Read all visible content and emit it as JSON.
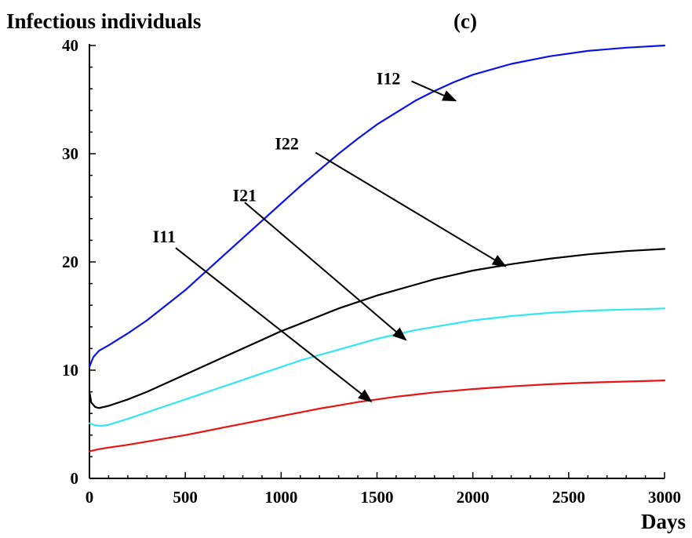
{
  "chart_data": {
    "type": "line",
    "title": "Infectious individuals",
    "panel_label": "(c)",
    "xlabel": "Days",
    "ylabel": "",
    "xlim": [
      0,
      3000
    ],
    "ylim": [
      0,
      40
    ],
    "x_ticks": [
      0,
      500,
      1000,
      1500,
      2000,
      2500,
      3000
    ],
    "y_ticks": [
      0,
      10,
      20,
      30,
      40
    ],
    "grid": false,
    "series": [
      {
        "name": "I12",
        "color": "#0a14e6",
        "points": [
          [
            0,
            10.3
          ],
          [
            20,
            11.2
          ],
          [
            50,
            11.8
          ],
          [
            100,
            12.3
          ],
          [
            200,
            13.4
          ],
          [
            300,
            14.6
          ],
          [
            400,
            16.0
          ],
          [
            500,
            17.4
          ],
          [
            600,
            19.0
          ],
          [
            700,
            20.6
          ],
          [
            800,
            22.2
          ],
          [
            900,
            23.8
          ],
          [
            1000,
            25.4
          ],
          [
            1100,
            27.0
          ],
          [
            1200,
            28.5
          ],
          [
            1300,
            30.0
          ],
          [
            1400,
            31.4
          ],
          [
            1500,
            32.7
          ],
          [
            1600,
            33.8
          ],
          [
            1700,
            34.9
          ],
          [
            1800,
            35.8
          ],
          [
            1900,
            36.6
          ],
          [
            2000,
            37.3
          ],
          [
            2200,
            38.3
          ],
          [
            2400,
            39.0
          ],
          [
            2600,
            39.5
          ],
          [
            2800,
            39.8
          ],
          [
            3000,
            40.0
          ]
        ]
      },
      {
        "name": "I22",
        "color": "#000000",
        "points": [
          [
            0,
            8.0
          ],
          [
            10,
            7.0
          ],
          [
            30,
            6.6
          ],
          [
            50,
            6.5
          ],
          [
            100,
            6.7
          ],
          [
            200,
            7.3
          ],
          [
            300,
            8.0
          ],
          [
            400,
            8.8
          ],
          [
            500,
            9.6
          ],
          [
            600,
            10.4
          ],
          [
            700,
            11.2
          ],
          [
            800,
            12.0
          ],
          [
            900,
            12.8
          ],
          [
            1000,
            13.6
          ],
          [
            1100,
            14.3
          ],
          [
            1200,
            15.0
          ],
          [
            1300,
            15.7
          ],
          [
            1400,
            16.3
          ],
          [
            1500,
            16.9
          ],
          [
            1600,
            17.4
          ],
          [
            1700,
            17.9
          ],
          [
            1800,
            18.4
          ],
          [
            1900,
            18.8
          ],
          [
            2000,
            19.2
          ],
          [
            2200,
            19.8
          ],
          [
            2400,
            20.3
          ],
          [
            2600,
            20.7
          ],
          [
            2800,
            21.0
          ],
          [
            3000,
            21.2
          ]
        ]
      },
      {
        "name": "I21",
        "color": "#33e6f0",
        "points": [
          [
            0,
            5.1
          ],
          [
            30,
            4.9
          ],
          [
            60,
            4.85
          ],
          [
            100,
            4.95
          ],
          [
            200,
            5.5
          ],
          [
            300,
            6.1
          ],
          [
            400,
            6.7
          ],
          [
            500,
            7.3
          ],
          [
            600,
            7.9
          ],
          [
            700,
            8.5
          ],
          [
            800,
            9.1
          ],
          [
            900,
            9.7
          ],
          [
            1000,
            10.3
          ],
          [
            1100,
            10.9
          ],
          [
            1200,
            11.4
          ],
          [
            1300,
            11.9
          ],
          [
            1400,
            12.4
          ],
          [
            1500,
            12.9
          ],
          [
            1600,
            13.3
          ],
          [
            1700,
            13.7
          ],
          [
            1800,
            14.0
          ],
          [
            1900,
            14.3
          ],
          [
            2000,
            14.6
          ],
          [
            2200,
            15.0
          ],
          [
            2400,
            15.3
          ],
          [
            2600,
            15.5
          ],
          [
            2800,
            15.6
          ],
          [
            3000,
            15.7
          ]
        ]
      },
      {
        "name": "I11",
        "color": "#e61414",
        "points": [
          [
            0,
            2.5
          ],
          [
            50,
            2.7
          ],
          [
            100,
            2.85
          ],
          [
            200,
            3.1
          ],
          [
            300,
            3.4
          ],
          [
            400,
            3.7
          ],
          [
            500,
            4.0
          ],
          [
            600,
            4.35
          ],
          [
            700,
            4.7
          ],
          [
            800,
            5.05
          ],
          [
            900,
            5.4
          ],
          [
            1000,
            5.75
          ],
          [
            1100,
            6.1
          ],
          [
            1200,
            6.45
          ],
          [
            1300,
            6.75
          ],
          [
            1400,
            7.05
          ],
          [
            1500,
            7.3
          ],
          [
            1600,
            7.55
          ],
          [
            1700,
            7.75
          ],
          [
            1800,
            7.95
          ],
          [
            1900,
            8.1
          ],
          [
            2000,
            8.25
          ],
          [
            2200,
            8.5
          ],
          [
            2400,
            8.7
          ],
          [
            2600,
            8.85
          ],
          [
            2800,
            8.95
          ],
          [
            3000,
            9.05
          ]
        ]
      }
    ],
    "annotations": [
      {
        "text": "I12",
        "label_x": 1560,
        "label_y": 36.4,
        "arrow_from": [
          1680,
          36.7
        ],
        "arrow_to": [
          1910,
          34.9
        ]
      },
      {
        "text": "I22",
        "label_x": 1030,
        "label_y": 30.4,
        "arrow_from": [
          1180,
          30.1
        ],
        "arrow_to": [
          2170,
          19.6
        ]
      },
      {
        "text": "I21",
        "label_x": 810,
        "label_y": 25.6,
        "arrow_from": [
          810,
          25.5
        ],
        "arrow_to": [
          1650,
          12.8
        ]
      },
      {
        "text": "I11",
        "label_x": 390,
        "label_y": 21.8,
        "arrow_from": [
          450,
          21.3
        ],
        "arrow_to": [
          1470,
          7.1
        ]
      }
    ]
  }
}
